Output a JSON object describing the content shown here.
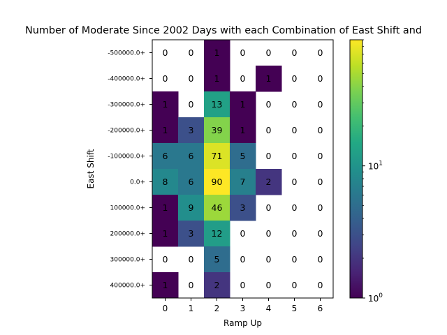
{
  "chart_data": {
    "type": "heatmap",
    "title": "Number of Moderate Since 2002 Days with each Combination of East Shift and",
    "xlabel": "Ramp Up",
    "ylabel": "East Shift",
    "x_categories": [
      "0",
      "1",
      "2",
      "3",
      "4",
      "5",
      "6"
    ],
    "y_categories": [
      "-500000.0+",
      "-400000.0+",
      "-300000.0+",
      "-200000.0+",
      "-100000.0+",
      "0.0+",
      "100000.0+",
      "200000.0+",
      "300000.0+",
      "400000.0+"
    ],
    "values": [
      [
        0,
        0,
        1,
        0,
        0,
        0,
        0
      ],
      [
        0,
        0,
        1,
        0,
        1,
        0,
        0
      ],
      [
        1,
        0,
        13,
        1,
        0,
        0,
        0
      ],
      [
        1,
        3,
        39,
        1,
        0,
        0,
        0
      ],
      [
        6,
        6,
        71,
        5,
        0,
        0,
        0
      ],
      [
        8,
        6,
        90,
        7,
        2,
        0,
        0
      ],
      [
        1,
        9,
        46,
        3,
        0,
        0,
        0
      ],
      [
        1,
        3,
        12,
        0,
        0,
        0,
        0
      ],
      [
        0,
        0,
        5,
        0,
        0,
        0,
        0
      ],
      [
        1,
        0,
        2,
        0,
        0,
        0,
        0
      ]
    ],
    "colormap": "viridis",
    "color_scale": "log",
    "color_range": [
      1,
      90
    ],
    "zero_cells": "blank",
    "colorbar": {
      "position": "right",
      "tick_labels": [
        "10^0",
        "10^1"
      ],
      "tick_values": [
        1,
        10
      ]
    }
  }
}
